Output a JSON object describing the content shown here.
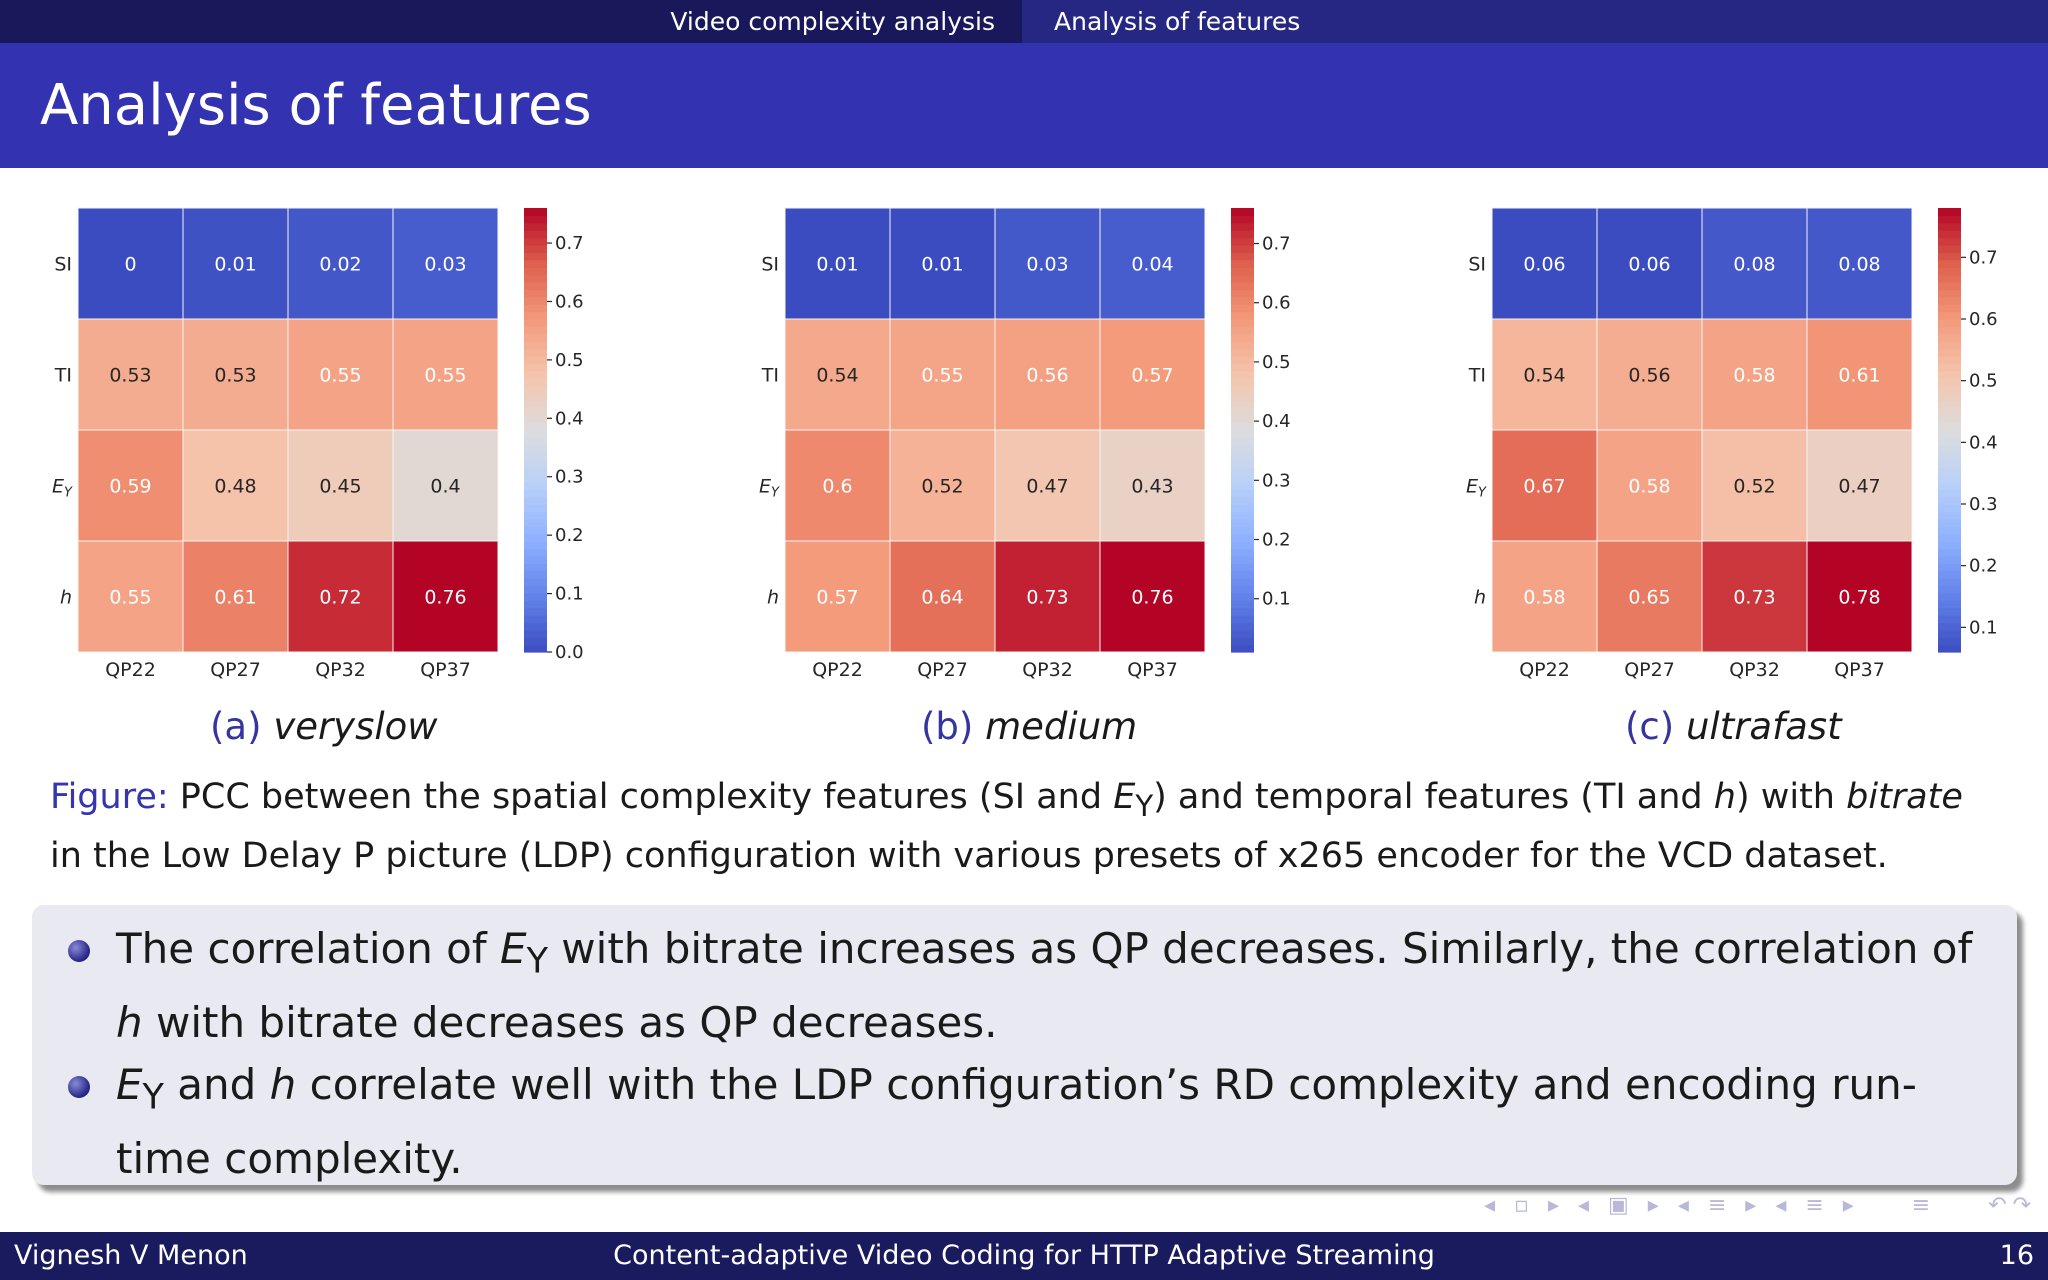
{
  "nav": {
    "section": "Video complexity analysis",
    "subsection": "Analysis of features"
  },
  "title": "Analysis of features",
  "chart_data": [
    {
      "type": "heatmap",
      "rows": [
        "SI",
        "TI",
        "E_Y",
        "h"
      ],
      "columns": [
        "QP22",
        "QP27",
        "QP32",
        "QP37"
      ],
      "values": [
        [
          0,
          0.01,
          0.02,
          0.03
        ],
        [
          0.53,
          0.53,
          0.55,
          0.55
        ],
        [
          0.59,
          0.48,
          0.45,
          0.4
        ],
        [
          0.55,
          0.61,
          0.72,
          0.76
        ]
      ],
      "colorbar": {
        "min": 0.0,
        "max": 0.76,
        "ticks": [
          "0.0",
          "0.1",
          "0.2",
          "0.3",
          "0.4",
          "0.5",
          "0.6",
          "0.7"
        ]
      },
      "caption_tag": "(a)",
      "caption_name": "veryslow"
    },
    {
      "type": "heatmap",
      "rows": [
        "SI",
        "TI",
        "E_Y",
        "h"
      ],
      "columns": [
        "QP22",
        "QP27",
        "QP32",
        "QP37"
      ],
      "values": [
        [
          0.01,
          0.01,
          0.03,
          0.04
        ],
        [
          0.54,
          0.55,
          0.56,
          0.57
        ],
        [
          0.6,
          0.52,
          0.47,
          0.43
        ],
        [
          0.57,
          0.64,
          0.73,
          0.76
        ]
      ],
      "colorbar": {
        "min": 0.01,
        "max": 0.76,
        "ticks": [
          "0.1",
          "0.2",
          "0.3",
          "0.4",
          "0.5",
          "0.6",
          "0.7"
        ]
      },
      "caption_tag": "(b)",
      "caption_name": "medium"
    },
    {
      "type": "heatmap",
      "rows": [
        "SI",
        "TI",
        "E_Y",
        "h"
      ],
      "columns": [
        "QP22",
        "QP27",
        "QP32",
        "QP37"
      ],
      "values": [
        [
          0.06,
          0.06,
          0.08,
          0.08
        ],
        [
          0.54,
          0.56,
          0.58,
          0.61
        ],
        [
          0.67,
          0.58,
          0.52,
          0.47
        ],
        [
          0.58,
          0.65,
          0.73,
          0.78
        ]
      ],
      "colorbar": {
        "min": 0.06,
        "max": 0.78,
        "ticks": [
          "0.1",
          "0.2",
          "0.3",
          "0.4",
          "0.5",
          "0.6",
          "0.7"
        ]
      },
      "caption_tag": "(c)",
      "caption_name": "ultrafast"
    }
  ],
  "figure_caption": {
    "label": "Figure:",
    "text_1": "PCC between the spatial complexity features (SI and ",
    "ey": "E",
    "ey_sub": "Y",
    "text_2": ") and temporal features (TI and ",
    "h": "h",
    "text_3": ") with ",
    "bitrate": "bitrate",
    "text_4": " in the Low Delay P picture (LDP) configuration with various presets of x265 encoder for the VCD dataset."
  },
  "bullets": {
    "b1_pre": "The correlation of ",
    "b1_e": "E",
    "b1_sub": "Y",
    "b1_mid": " with bitrate increases as QP decreases. Similarly, the correlation of ",
    "b1_h": "h",
    "b1_post": " with bitrate decreases as QP decreases.",
    "b2_e": "E",
    "b2_sub": "Y",
    "b2_mid": " and ",
    "b2_h": "h",
    "b2_post": " correlate well with the LDP configuration’s RD complexity and encoding run-time complexity."
  },
  "footer": {
    "author": "Vignesh V Menon",
    "talk": "Content-adaptive Video Coding for HTTP Adaptive Streaming",
    "page": "16"
  },
  "colors": {
    "low": "#3b4cc0",
    "mid": "#dddddd",
    "high": "#b40426",
    "header": "#3333b2",
    "footer": "#1a1a5e"
  }
}
